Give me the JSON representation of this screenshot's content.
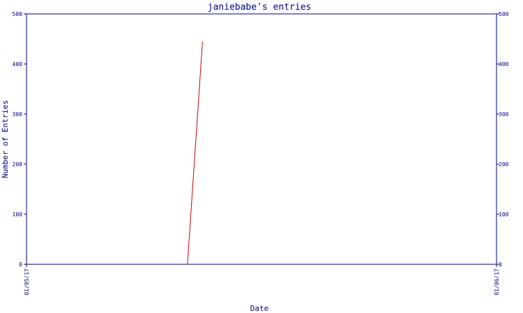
{
  "chart_data": {
    "type": "line",
    "title": "janiebabe's entries",
    "xlabel": "Date",
    "ylabel": "Number of Entries",
    "x_tick_labels": [
      "01/05/17",
      "01/06/17"
    ],
    "y_ticks": [
      0,
      100,
      200,
      300,
      400,
      500
    ],
    "ylim": [
      0,
      500
    ],
    "grid": false,
    "colors": {
      "axis": "#000080",
      "text": "#000080",
      "series": "#cc0000",
      "background": "#ffffff"
    },
    "series": [
      {
        "points": [
          {
            "x": 0.3425,
            "y": 0
          },
          {
            "x": 0.3745,
            "y": 445
          }
        ]
      }
    ]
  }
}
